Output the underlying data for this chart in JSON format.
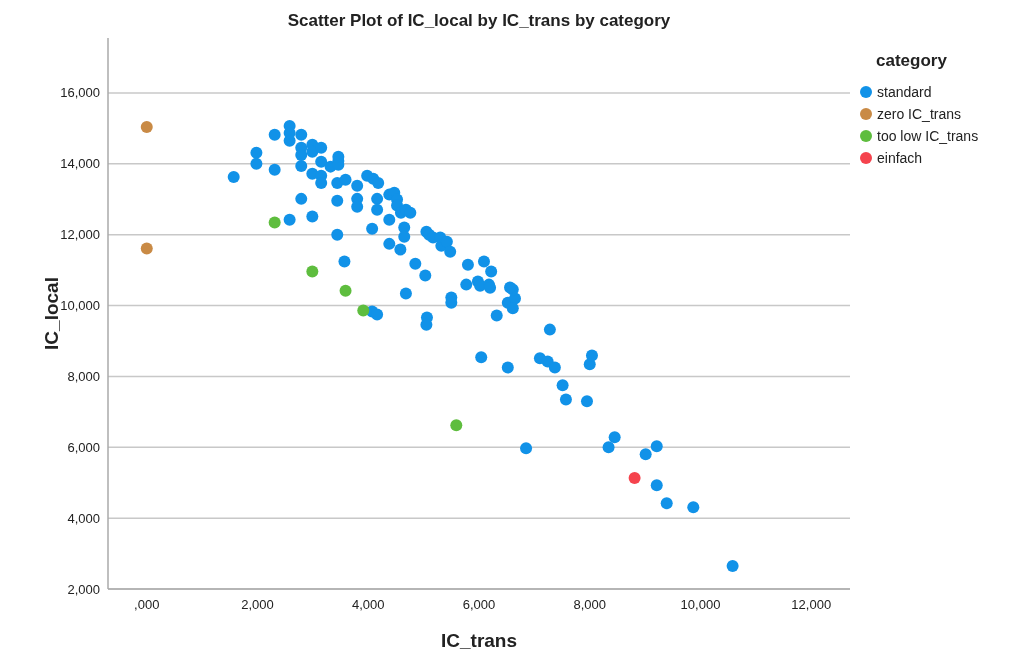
{
  "chart_data": {
    "type": "scatter",
    "title": "Scatter Plot of IC_local by IC_trans by category",
    "xlabel": "IC_trans",
    "ylabel": "IC_local",
    "legend_title": "category",
    "legend": "right",
    "grid": "y",
    "marker": "circle",
    "xlim": [
      -700,
      12700
    ],
    "ylim": [
      2000,
      17550
    ],
    "xticks": [
      {
        "value": 0,
        "label": ",000"
      },
      {
        "value": 2000,
        "label": "2,000"
      },
      {
        "value": 4000,
        "label": "4,000"
      },
      {
        "value": 6000,
        "label": "6,000"
      },
      {
        "value": 8000,
        "label": "8,000"
      },
      {
        "value": 10000,
        "label": "10,000"
      },
      {
        "value": 12000,
        "label": "12,000"
      }
    ],
    "yticks": [
      {
        "value": 2000,
        "label": "2,000"
      },
      {
        "value": 4000,
        "label": "4,000"
      },
      {
        "value": 6000,
        "label": "6,000"
      },
      {
        "value": 8000,
        "label": "8,000"
      },
      {
        "value": 10000,
        "label": "10,000"
      },
      {
        "value": 12000,
        "label": "12,000"
      },
      {
        "value": 14000,
        "label": "14,000"
      },
      {
        "value": 16000,
        "label": "16,000"
      }
    ],
    "series": [
      {
        "name": "standard",
        "color": "#1192e8",
        "x": [
          1570,
          1980,
          1980,
          2310,
          2310,
          2580,
          2580,
          2580,
          2580,
          2790,
          2790,
          2790,
          2790,
          2790,
          2990,
          2990,
          2990,
          2990,
          3150,
          3150,
          3150,
          3150,
          3320,
          3460,
          3460,
          3460,
          3440,
          3440,
          3440,
          3590,
          3570,
          3800,
          3800,
          3800,
          3980,
          4090,
          4180,
          4160,
          4160,
          4070,
          4070,
          4160,
          4380,
          4380,
          4380,
          4470,
          4520,
          4520,
          4590,
          4580,
          4650,
          4650,
          4680,
          4760,
          4680,
          4850,
          5030,
          5050,
          5100,
          5170,
          5300,
          5320,
          5420,
          5480,
          5500,
          5500,
          5060,
          5050,
          5800,
          5770,
          5980,
          6020,
          6090,
          6180,
          6220,
          6200,
          6040,
          6320,
          6520,
          6520,
          6650,
          6610,
          6560,
          6610,
          6850,
          7100,
          7240,
          7280,
          7370,
          7510,
          7570,
          7950,
          8000,
          8040,
          8450,
          8340,
          9210,
          9010,
          9210,
          9390,
          9870,
          10580
        ],
        "values": [
          13630,
          14310,
          14000,
          14820,
          13830,
          15070,
          14870,
          14650,
          12420,
          14820,
          14450,
          14250,
          13940,
          13010,
          14540,
          14340,
          13720,
          12510,
          14450,
          14060,
          13660,
          13460,
          13920,
          14080,
          14200,
          13970,
          13460,
          12960,
          12000,
          13550,
          11240,
          13380,
          13010,
          12790,
          13660,
          13580,
          13460,
          13010,
          12700,
          12170,
          9830,
          9750,
          13130,
          12420,
          11740,
          13180,
          12990,
          12820,
          12620,
          11580,
          12200,
          11940,
          12700,
          12620,
          10340,
          11180,
          10850,
          12080,
          12000,
          11920,
          11920,
          11690,
          11800,
          11520,
          10230,
          10080,
          9660,
          9460,
          11150,
          10590,
          10680,
          10560,
          11240,
          10590,
          10960,
          10500,
          8540,
          9720,
          8250,
          10080,
          10200,
          10450,
          10510,
          9920,
          5970,
          8510,
          8420,
          9320,
          8250,
          7750,
          7350,
          7300,
          8340,
          8590,
          6280,
          6000,
          6030,
          5800,
          4930,
          4420,
          4310,
          2650
        ]
      },
      {
        "name": "zero IC_trans",
        "color": "#c98a45",
        "x": [
          0,
          0
        ],
        "values": [
          15040,
          11610
        ]
      },
      {
        "name": "too low IC_trans",
        "color": "#5ebd3e",
        "x": [
          2310,
          2990,
          3590,
          3910,
          5590
        ],
        "values": [
          12340,
          10960,
          10420,
          9860,
          6620
        ]
      },
      {
        "name": "einfach",
        "color": "#f5434d",
        "x": [
          8810
        ],
        "values": [
          5130
        ]
      }
    ]
  }
}
